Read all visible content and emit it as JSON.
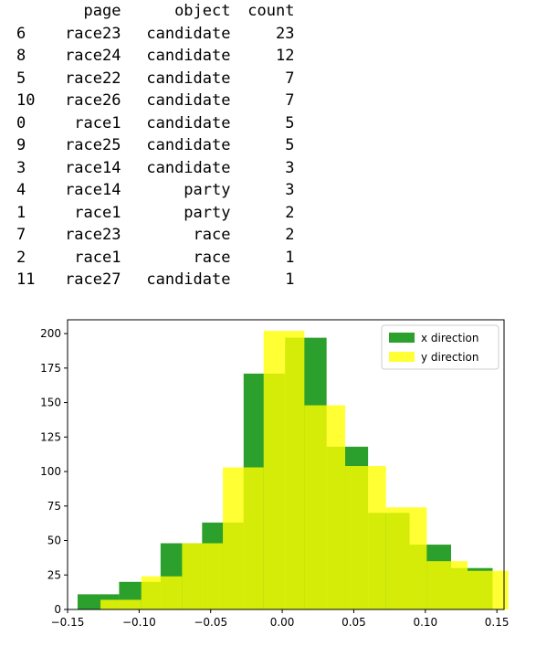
{
  "table": {
    "columns": [
      "page",
      "object",
      "count"
    ],
    "rows": [
      {
        "index": "6",
        "page": "race23",
        "object": "candidate",
        "count": "23"
      },
      {
        "index": "8",
        "page": "race24",
        "object": "candidate",
        "count": "12"
      },
      {
        "index": "5",
        "page": "race22",
        "object": "candidate",
        "count": "7"
      },
      {
        "index": "10",
        "page": "race26",
        "object": "candidate",
        "count": "7"
      },
      {
        "index": "0",
        "page": "race1",
        "object": "candidate",
        "count": "5"
      },
      {
        "index": "9",
        "page": "race25",
        "object": "candidate",
        "count": "5"
      },
      {
        "index": "3",
        "page": "race14",
        "object": "candidate",
        "count": "3"
      },
      {
        "index": "4",
        "page": "race14",
        "object": "party",
        "count": "3"
      },
      {
        "index": "1",
        "page": "race1",
        "object": "party",
        "count": "2"
      },
      {
        "index": "7",
        "page": "race23",
        "object": "race",
        "count": "2"
      },
      {
        "index": "2",
        "page": "race1",
        "object": "race",
        "count": "1"
      },
      {
        "index": "11",
        "page": "race27",
        "object": "candidate",
        "count": "1"
      }
    ]
  },
  "chart_data": {
    "type": "histogram",
    "title": "",
    "xlabel": "",
    "ylabel": "",
    "xlim": [
      -0.15,
      0.155
    ],
    "ylim": [
      0,
      210
    ],
    "xticks": [
      -0.15,
      -0.1,
      -0.05,
      0.0,
      0.05,
      0.1,
      0.15
    ],
    "xtick_labels": [
      "−0.15",
      "−0.10",
      "−0.05",
      "0.00",
      "0.05",
      "0.10",
      "0.15"
    ],
    "yticks": [
      0,
      25,
      50,
      75,
      100,
      125,
      150,
      175,
      200
    ],
    "ytick_labels": [
      "0",
      "25",
      "50",
      "75",
      "100",
      "125",
      "150",
      "175",
      "200"
    ],
    "grid": false,
    "legend_position": "top-right",
    "series": [
      {
        "name": "x direction",
        "color": "#2ca02c",
        "bin_edges": [
          -0.143,
          -0.114,
          -0.085,
          -0.056,
          -0.027,
          0.002,
          0.031,
          0.06,
          0.089,
          0.118,
          0.147
        ],
        "counts": [
          11,
          20,
          48,
          63,
          171,
          197,
          118,
          70,
          47,
          30
        ]
      },
      {
        "name": "y direction",
        "color": "#ffff00",
        "alpha": 0.8,
        "bin_edges": [
          -0.127,
          -0.0985,
          -0.07,
          -0.0415,
          -0.013,
          0.0155,
          0.044,
          0.0725,
          0.101,
          0.1295,
          0.158
        ],
        "counts": [
          7,
          24,
          48,
          103,
          202,
          148,
          104,
          74,
          35,
          28
        ]
      }
    ]
  }
}
